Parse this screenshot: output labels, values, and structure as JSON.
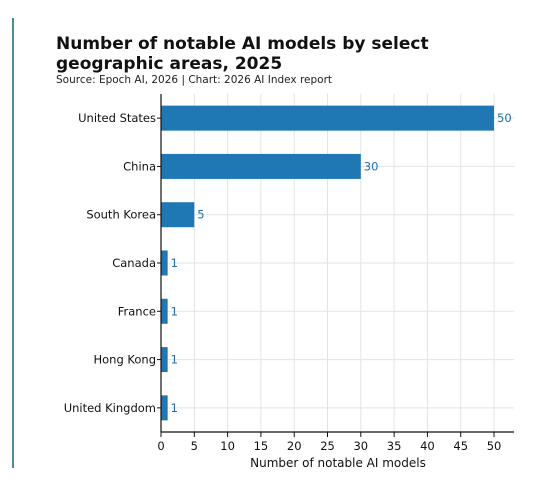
{
  "chart_data": {
    "type": "bar",
    "orientation": "horizontal",
    "title": "Number of notable AI models by select geographic areas, 2025",
    "source": "Source: Epoch AI, 2026 | Chart: 2026 AI Index report",
    "xlabel": "Number of notable AI models",
    "ylabel": "",
    "categories": [
      "United States",
      "China",
      "South Korea",
      "Canada",
      "France",
      "Hong Kong",
      "United Kingdom"
    ],
    "values": [
      50,
      30,
      5,
      1,
      1,
      1,
      1
    ],
    "xlim": [
      0,
      53
    ],
    "xticks": [
      0,
      5,
      10,
      15,
      20,
      25,
      30,
      35,
      40,
      45,
      50
    ],
    "grid": true,
    "legend": false,
    "colors": {
      "bar": "#1f77b4",
      "label": "#1f6fa8",
      "grid": "#e3e3e3",
      "axis": "#111111",
      "accent": "#4a8a9a"
    }
  }
}
